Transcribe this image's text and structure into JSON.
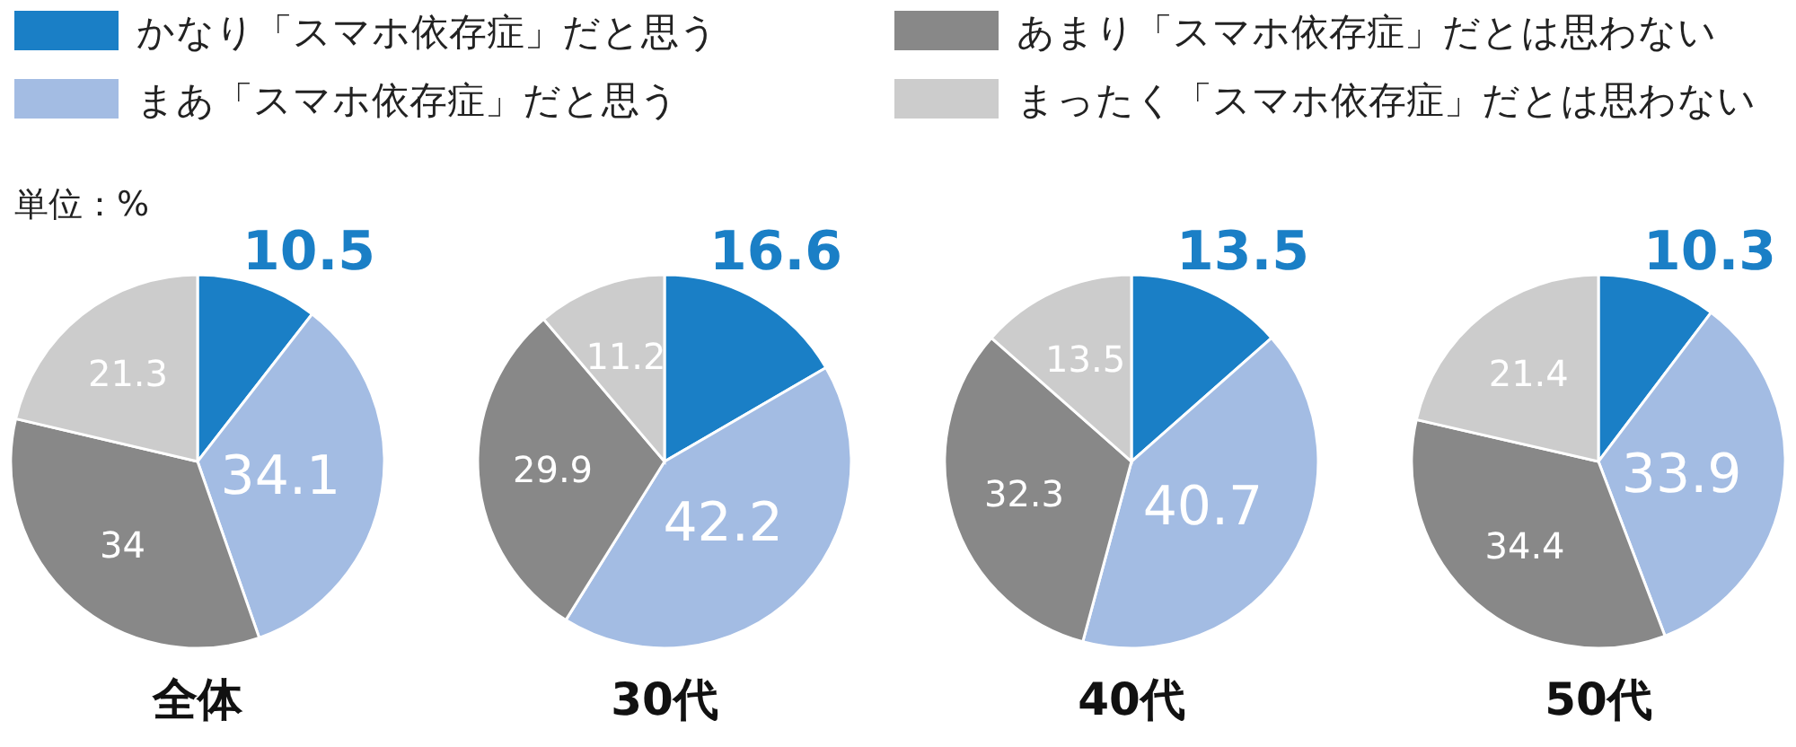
{
  "chart_data": [
    {
      "type": "pie",
      "title": "全体",
      "categories": [
        "かなり「スマホ依存症」だと思う",
        "まあ「スマホ依存症」だと思う",
        "あまり「スマホ依存症」だとは思わない",
        "まったく「スマホ依存症」だとは思わない"
      ],
      "values": [
        10.5,
        34.1,
        34,
        21.3
      ],
      "colors": [
        "#1a7fc6",
        "#a3bce3",
        "#888888",
        "#cccccc"
      ],
      "data_labels": true,
      "legend": "top",
      "annotations": [
        "単位：%"
      ]
    },
    {
      "type": "pie",
      "title": "30代",
      "categories": [
        null,
        null,
        null,
        null
      ],
      "values": [
        16.6,
        42.2,
        29.9,
        11.2
      ],
      "colors": [
        "#1a7fc6",
        "#a3bce3",
        "#888888",
        "#cccccc"
      ],
      "data_labels": true
    },
    {
      "type": "pie",
      "title": "40代",
      "categories": [
        null,
        null,
        null,
        null
      ],
      "values": [
        13.5,
        40.7,
        32.3,
        13.5
      ],
      "colors": [
        "#1a7fc6",
        "#a3bce3",
        "#888888",
        "#cccccc"
      ],
      "data_labels": true
    },
    {
      "type": "pie",
      "title": "50代",
      "categories": [
        null,
        null,
        null,
        null
      ],
      "values": [
        10.3,
        33.9,
        34.4,
        21.4
      ],
      "colors": [
        "#1a7fc6",
        "#a3bce3",
        "#888888",
        "#cccccc"
      ],
      "data_labels": true
    }
  ]
}
